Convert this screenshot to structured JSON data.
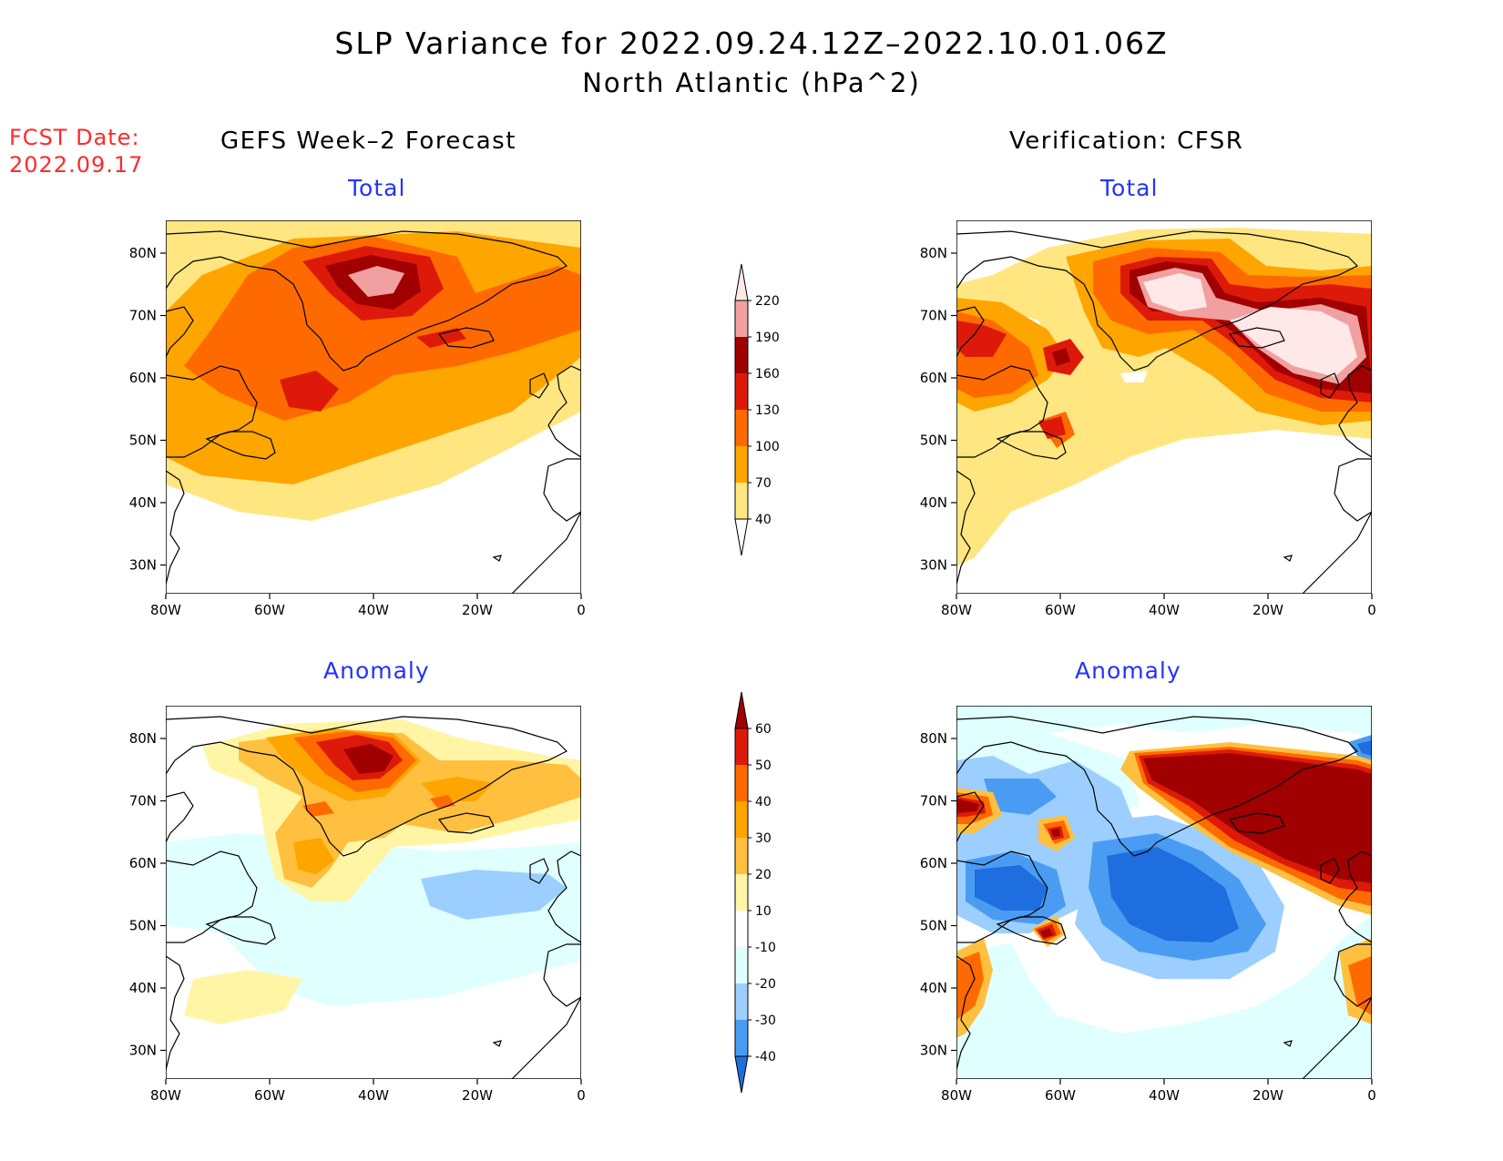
{
  "title": {
    "line1": "SLP Variance for 2022.09.24.12Z–2022.10.01.06Z",
    "line2": "North Atlantic (hPa^2)"
  },
  "fcst_date": {
    "label": "FCST Date:",
    "date": "2022.09.17"
  },
  "columns": {
    "left": "GEFS Week–2 Forecast",
    "right": "Verification: CFSR"
  },
  "panel_titles": {
    "total": "Total",
    "anomaly": "Anomaly"
  },
  "axes": {
    "lon_labels": [
      "80W",
      "60W",
      "40W",
      "20W",
      "0"
    ],
    "lat_labels": [
      "80N",
      "70N",
      "60N",
      "50N",
      "40N",
      "30N"
    ]
  },
  "colorbars": {
    "total": {
      "levels": [
        "220",
        "190",
        "160",
        "130",
        "100",
        "70",
        "40"
      ],
      "colors": [
        "#ffe8e8",
        "#f0a0a0",
        "#a00000",
        "#dd1a0a",
        "#ff6a00",
        "#ffa500",
        "#ffe680"
      ]
    },
    "anomaly": {
      "levels": [
        "60",
        "50",
        "40",
        "30",
        "20",
        "10",
        "-10",
        "-20",
        "-30",
        "-40"
      ],
      "colors": [
        "#a00000",
        "#dd1a0a",
        "#ff6a00",
        "#ffa500",
        "#ffc040",
        "#fff5a5",
        "#ffffff",
        "#e0ffff",
        "#9ccfff",
        "#4a9cf2",
        "#1e6ee0"
      ]
    }
  },
  "colors": {
    "title_text": "#000000",
    "fcst_text": "#ff2a2a",
    "subtitle_text": "#2233ff"
  }
}
